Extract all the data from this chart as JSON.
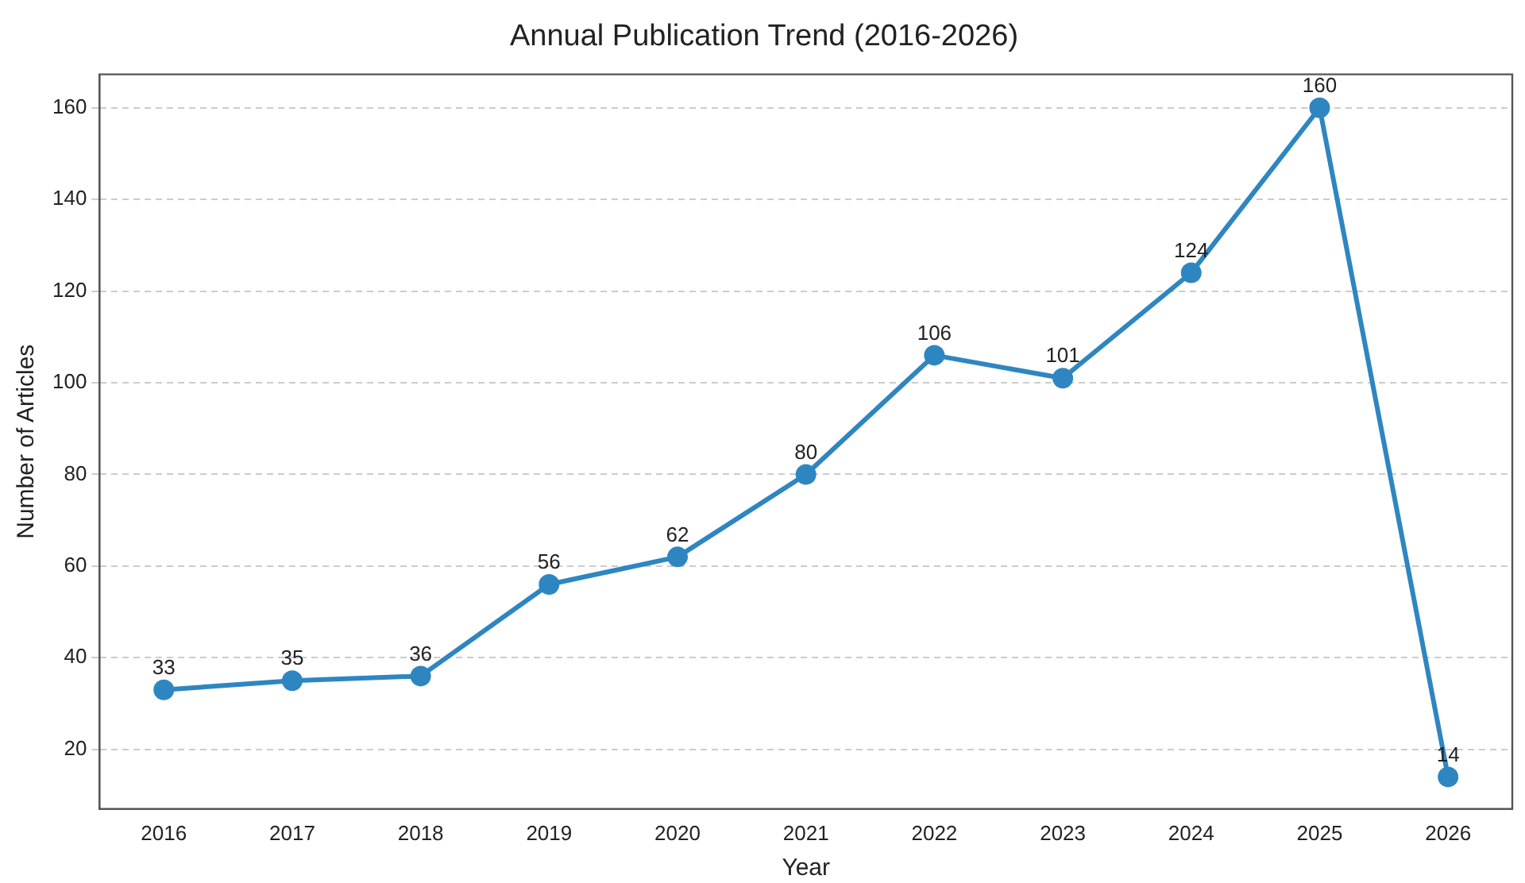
{
  "chart_data": {
    "type": "line",
    "title": "Annual Publication Trend (2016-2026)",
    "xlabel": "Year",
    "ylabel": "Number of Articles",
    "categories": [
      "2016",
      "2017",
      "2018",
      "2019",
      "2020",
      "2021",
      "2022",
      "2023",
      "2024",
      "2025",
      "2026"
    ],
    "series": [
      {
        "color": "#2e86c1",
        "values": [
          33,
          35,
          36,
          56,
          62,
          80,
          106,
          101,
          124,
          160,
          14
        ]
      }
    ],
    "ylim": [
      7,
      167.3
    ],
    "yticks": [
      20,
      40,
      60,
      80,
      100,
      120,
      140,
      160
    ],
    "grid": "y",
    "marker": "circle",
    "line_style": "solid",
    "data_labels": true,
    "legend": false
  }
}
